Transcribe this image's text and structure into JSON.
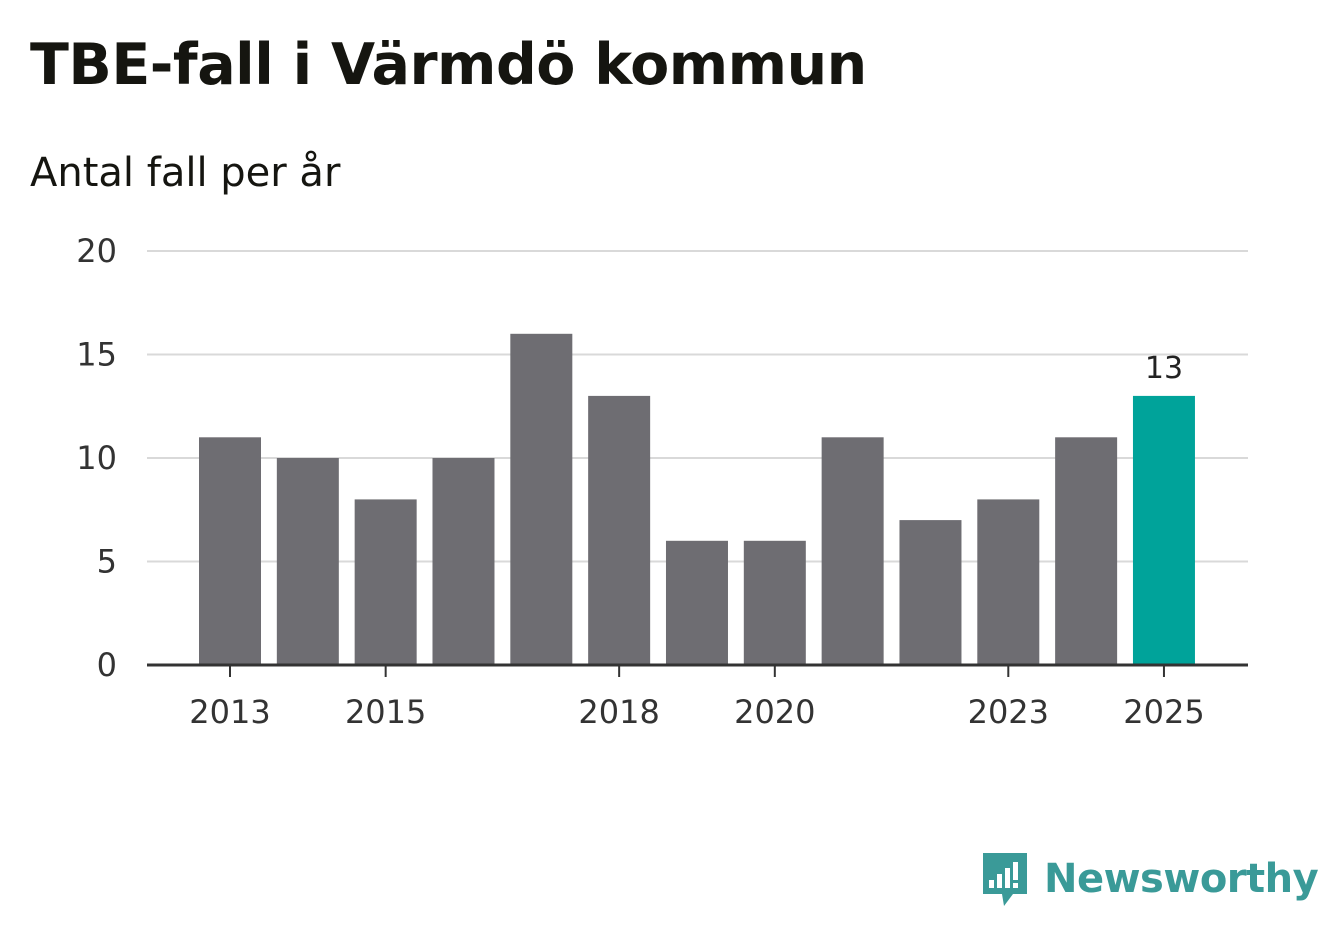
{
  "title": "TBE-fall i Värmdö kommun",
  "subtitle": "Antal fall per år",
  "brand": {
    "name": "Newsworthy",
    "color": "#3a9a98",
    "icon": "bar-chart-speech-icon"
  },
  "colors": {
    "bar": "#6e6d72",
    "highlight": "#00a39a",
    "grid": "#d9d9d9",
    "axis": "#333333"
  },
  "chart_data": {
    "type": "bar",
    "categories": [
      "2013",
      "2014",
      "2015",
      "2016",
      "2017",
      "2018",
      "2019",
      "2020",
      "2021",
      "2022",
      "2023",
      "2024",
      "2025"
    ],
    "values": [
      11,
      10,
      8,
      10,
      16,
      13,
      6,
      6,
      11,
      7,
      8,
      11,
      13
    ],
    "highlight_index": 12,
    "data_labels": [
      {
        "index": 12,
        "text": "13"
      }
    ],
    "x_tick_labels": [
      "2013",
      "2015",
      "2018",
      "2020",
      "2023",
      "2025"
    ],
    "y_ticks": [
      0,
      5,
      10,
      15,
      20
    ],
    "ylim": [
      0,
      20
    ],
    "grid": true,
    "title": "TBE-fall i Värmdö kommun",
    "subtitle": "Antal fall per år"
  }
}
